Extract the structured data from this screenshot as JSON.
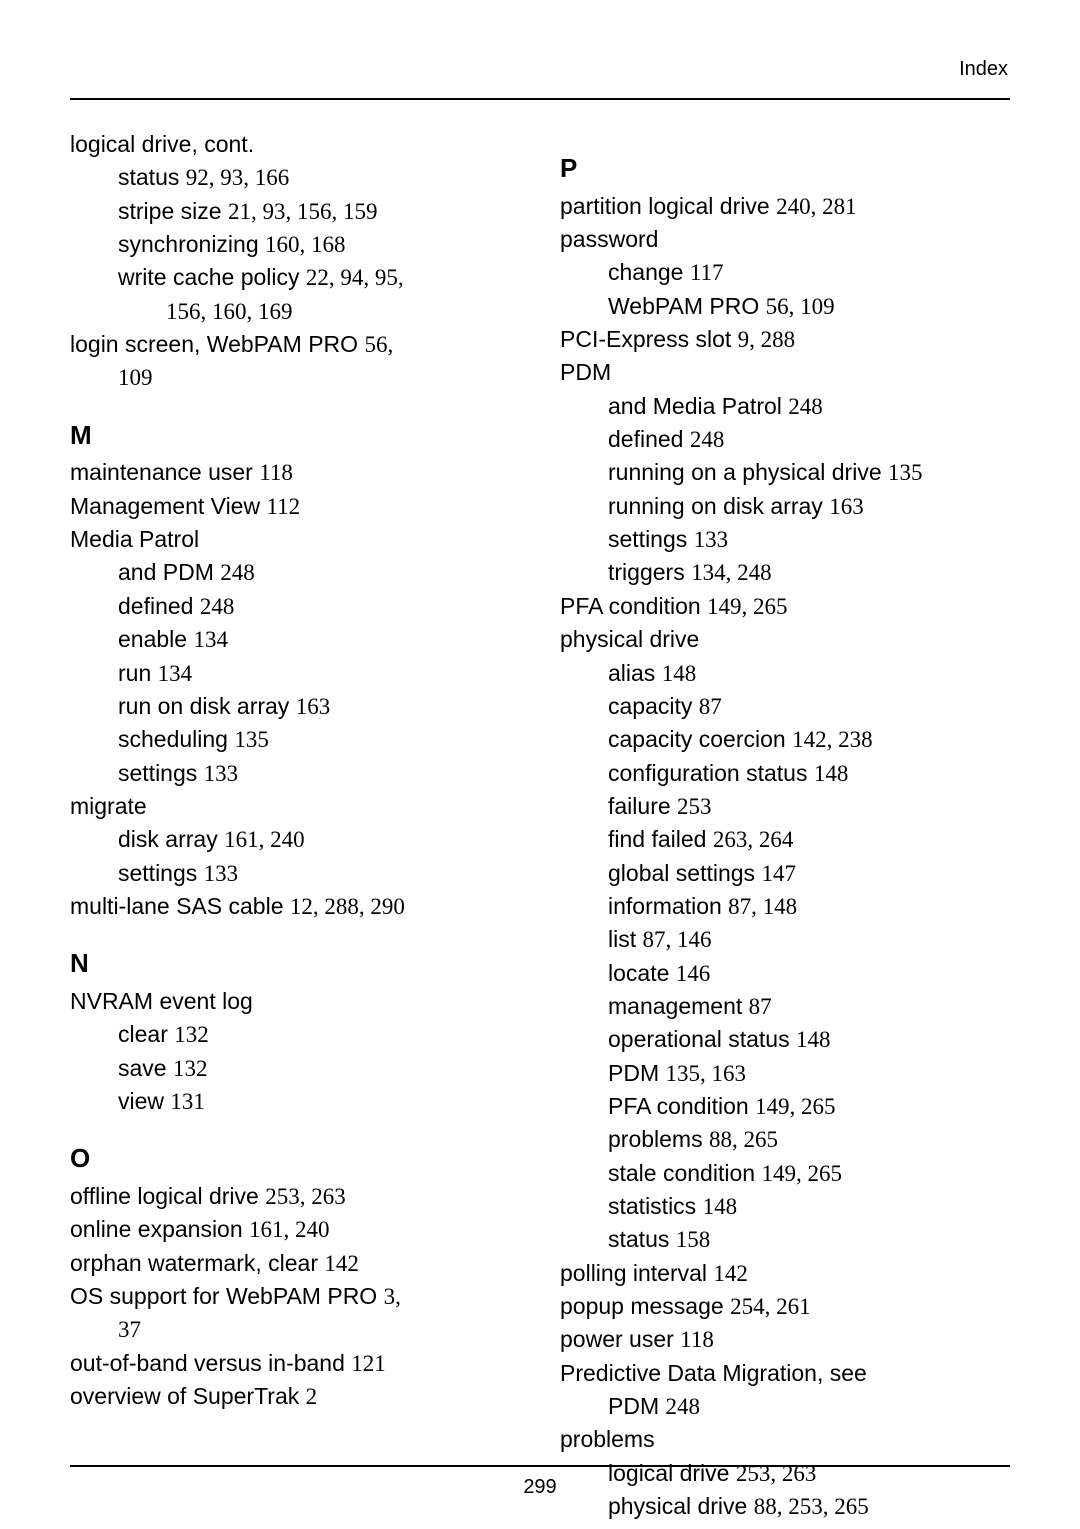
{
  "header": "Index",
  "page_number": "299",
  "left_column": [
    {
      "t": "entry",
      "text": "logical drive, cont."
    },
    {
      "t": "sub",
      "label": "status ",
      "pages": "92, 93, 166"
    },
    {
      "t": "sub",
      "label": "stripe size ",
      "pages": "21, 93, 156, 159"
    },
    {
      "t": "sub",
      "label": "synchronizing ",
      "pages": "160, 168"
    },
    {
      "t": "sub",
      "label": "write cache policy ",
      "pages": "22, 94, 95,"
    },
    {
      "t": "sub2",
      "label": "",
      "pages": "156, 160, 169"
    },
    {
      "t": "entry",
      "label": "login screen, WebPAM PRO ",
      "pages": "56,"
    },
    {
      "t": "sub",
      "label": "",
      "pages": "109"
    },
    {
      "t": "letter",
      "text": "M"
    },
    {
      "t": "entry",
      "label": "maintenance user ",
      "pages": "118"
    },
    {
      "t": "entry",
      "label": "Management View ",
      "pages": "112"
    },
    {
      "t": "entry",
      "text": "Media Patrol"
    },
    {
      "t": "sub",
      "label": "and PDM ",
      "pages": "248"
    },
    {
      "t": "sub",
      "label": "defined ",
      "pages": "248"
    },
    {
      "t": "sub",
      "label": "enable ",
      "pages": "134"
    },
    {
      "t": "sub",
      "label": "run ",
      "pages": "134"
    },
    {
      "t": "sub",
      "label": "run on disk array ",
      "pages": "163"
    },
    {
      "t": "sub",
      "label": "scheduling ",
      "pages": "135"
    },
    {
      "t": "sub",
      "label": "settings ",
      "pages": "133"
    },
    {
      "t": "entry",
      "text": "migrate"
    },
    {
      "t": "sub",
      "label": "disk array ",
      "pages": "161, 240"
    },
    {
      "t": "sub",
      "label": "settings ",
      "pages": "133"
    },
    {
      "t": "entry",
      "label": "multi-lane SAS cable ",
      "pages": "12, 288, 290"
    },
    {
      "t": "letter",
      "text": "N"
    },
    {
      "t": "entry",
      "text": "NVRAM event log"
    },
    {
      "t": "sub",
      "label": "clear ",
      "pages": "132"
    },
    {
      "t": "sub",
      "label": "save ",
      "pages": "132"
    },
    {
      "t": "sub",
      "label": "view ",
      "pages": "131"
    },
    {
      "t": "letter",
      "text": "O"
    },
    {
      "t": "entry",
      "label": "offline logical drive ",
      "pages": "253, 263"
    },
    {
      "t": "entry",
      "label": "online expansion ",
      "pages": "161, 240"
    },
    {
      "t": "entry",
      "label": "orphan watermark, clear ",
      "pages": "142"
    },
    {
      "t": "entry",
      "label": "OS support for WebPAM PRO ",
      "pages": "3,"
    },
    {
      "t": "sub",
      "label": "",
      "pages": "37"
    },
    {
      "t": "entry",
      "label": "out-of-band versus in-band ",
      "pages": "121"
    },
    {
      "t": "entry",
      "label": "overview of SuperTrak ",
      "pages": "2"
    }
  ],
  "right_column": [
    {
      "t": "letter",
      "text": "P"
    },
    {
      "t": "entry",
      "label": "partition logical drive ",
      "pages": "240, 281"
    },
    {
      "t": "entry",
      "text": "password"
    },
    {
      "t": "sub",
      "label": "change ",
      "pages": "117"
    },
    {
      "t": "sub",
      "label": "WebPAM PRO ",
      "pages": "56, 109"
    },
    {
      "t": "entry",
      "label": "PCI-Express slot ",
      "pages": "9, 288"
    },
    {
      "t": "entry",
      "text": "PDM"
    },
    {
      "t": "sub",
      "label": "and Media Patrol ",
      "pages": "248"
    },
    {
      "t": "sub",
      "label": "defined ",
      "pages": "248"
    },
    {
      "t": "sub",
      "label": "running on a physical drive ",
      "pages": "135"
    },
    {
      "t": "sub",
      "label": "running on disk array ",
      "pages": "163"
    },
    {
      "t": "sub",
      "label": "settings ",
      "pages": "133"
    },
    {
      "t": "sub",
      "label": "triggers ",
      "pages": "134, 248"
    },
    {
      "t": "entry",
      "label": "PFA condition ",
      "pages": "149, 265"
    },
    {
      "t": "entry",
      "text": "physical drive"
    },
    {
      "t": "sub",
      "label": "alias ",
      "pages": "148"
    },
    {
      "t": "sub",
      "label": "capacity ",
      "pages": "87"
    },
    {
      "t": "sub",
      "label": "capacity coercion ",
      "pages": "142, 238"
    },
    {
      "t": "sub",
      "label": "configuration status ",
      "pages": "148"
    },
    {
      "t": "sub",
      "label": "failure ",
      "pages": "253"
    },
    {
      "t": "sub",
      "label": "find failed ",
      "pages": "263, 264"
    },
    {
      "t": "sub",
      "label": "global settings ",
      "pages": "147"
    },
    {
      "t": "sub",
      "label": "information ",
      "pages": "87, 148"
    },
    {
      "t": "sub",
      "label": "list ",
      "pages": "87, 146"
    },
    {
      "t": "sub",
      "label": "locate ",
      "pages": "146"
    },
    {
      "t": "sub",
      "label": "management ",
      "pages": "87"
    },
    {
      "t": "sub",
      "label": "operational status ",
      "pages": "148"
    },
    {
      "t": "sub",
      "label": "PDM ",
      "pages": "135, 163"
    },
    {
      "t": "sub",
      "label": "PFA condition ",
      "pages": "149, 265"
    },
    {
      "t": "sub",
      "label": "problems ",
      "pages": "88, 265"
    },
    {
      "t": "sub",
      "label": "stale condition ",
      "pages": "149, 265"
    },
    {
      "t": "sub",
      "label": "statistics ",
      "pages": "148"
    },
    {
      "t": "sub",
      "label": "status ",
      "pages": "158"
    },
    {
      "t": "entry",
      "label": "polling interval ",
      "pages": "142"
    },
    {
      "t": "entry",
      "label": "popup message ",
      "pages": "254, 261"
    },
    {
      "t": "entry",
      "label": "power user ",
      "pages": "118"
    },
    {
      "t": "entry",
      "text": "Predictive Data Migration, see"
    },
    {
      "t": "sub",
      "label": "PDM ",
      "pages": "248"
    },
    {
      "t": "entry",
      "text": "problems"
    },
    {
      "t": "sub",
      "label": "logical drive ",
      "pages": "253, 263"
    },
    {
      "t": "sub",
      "label": "physical drive ",
      "pages": "88, 253, 265"
    }
  ]
}
